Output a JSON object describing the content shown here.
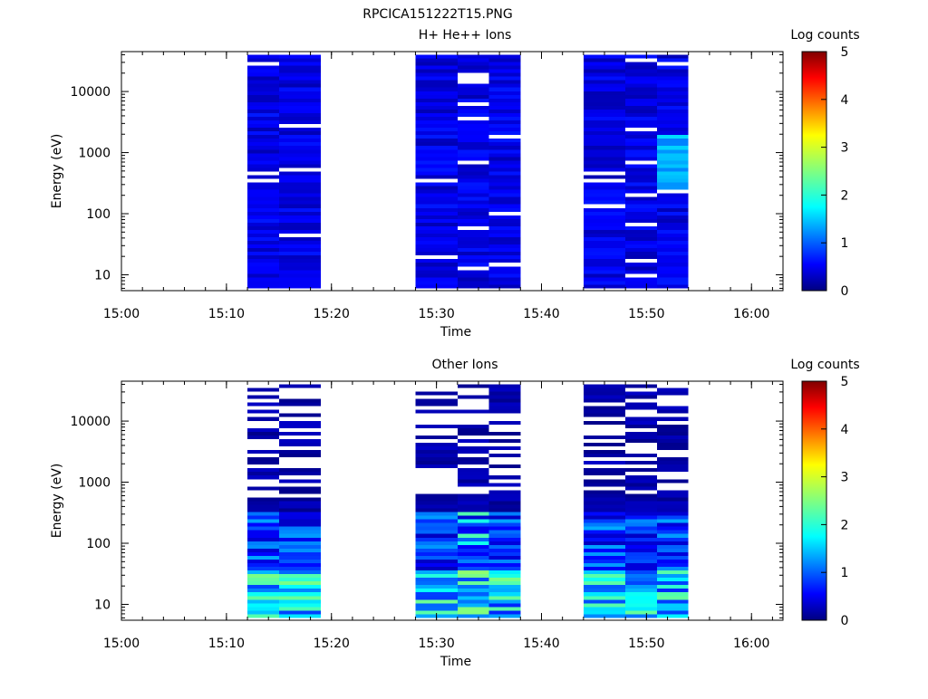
{
  "page_title": "RPCICA151222T15.PNG",
  "chart_data": [
    {
      "type": "heatmap",
      "title": "H+ He++ Ions",
      "xlabel": "Time",
      "ylabel": "Energy (eV)",
      "colorbar_label": "Log counts",
      "colorbar_ticks": [
        "0",
        "1",
        "2",
        "3",
        "4",
        "5"
      ],
      "x_ticks": [
        "15:00",
        "15:10",
        "15:20",
        "15:30",
        "15:40",
        "15:50",
        "16:00"
      ],
      "y_ticks": [
        "10",
        "100",
        "1000",
        "10000"
      ],
      "y_scale": "log",
      "ylim": [
        5.5,
        45000
      ],
      "xlim": [
        "15:00",
        "16:03"
      ],
      "zlim": [
        0,
        5
      ],
      "columns": [
        {
          "start": "15:12",
          "end": "15:15"
        },
        {
          "start": "15:15",
          "end": "15:19"
        },
        {
          "start": "15:28",
          "end": "15:32"
        },
        {
          "start": "15:32",
          "end": "15:35"
        },
        {
          "start": "15:35",
          "end": "15:38"
        },
        {
          "start": "15:44",
          "end": "15:48"
        },
        {
          "start": "15:48",
          "end": "15:51"
        },
        {
          "start": "15:51",
          "end": "15:54"
        }
      ]
    },
    {
      "type": "heatmap",
      "title": "Other Ions",
      "xlabel": "Time",
      "ylabel": "Energy (eV)",
      "colorbar_label": "Log counts",
      "colorbar_ticks": [
        "0",
        "1",
        "2",
        "3",
        "4",
        "5"
      ],
      "x_ticks": [
        "15:00",
        "15:10",
        "15:20",
        "15:30",
        "15:40",
        "15:50",
        "16:00"
      ],
      "y_ticks": [
        "10",
        "100",
        "1000",
        "10000"
      ],
      "y_scale": "log",
      "ylim": [
        5.5,
        45000
      ],
      "xlim": [
        "15:00",
        "16:03"
      ],
      "zlim": [
        0,
        5
      ],
      "columns": [
        {
          "start": "15:12",
          "end": "15:15"
        },
        {
          "start": "15:15",
          "end": "15:19"
        },
        {
          "start": "15:28",
          "end": "15:32"
        },
        {
          "start": "15:32",
          "end": "15:35"
        },
        {
          "start": "15:35",
          "end": "15:38"
        },
        {
          "start": "15:44",
          "end": "15:48"
        },
        {
          "start": "15:48",
          "end": "15:51"
        },
        {
          "start": "15:51",
          "end": "15:54"
        }
      ]
    }
  ]
}
